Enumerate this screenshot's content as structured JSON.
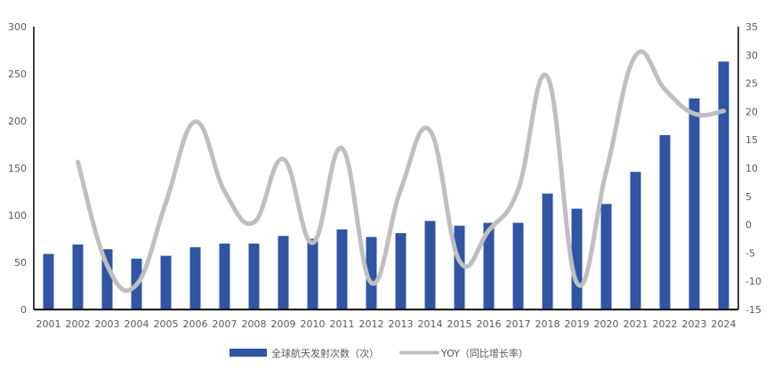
{
  "chart_data": {
    "type": "bar+line",
    "title": "",
    "categories": [
      "2001",
      "2002",
      "2003",
      "2004",
      "2005",
      "2006",
      "2007",
      "2008",
      "2009",
      "2010",
      "2011",
      "2012",
      "2013",
      "2014",
      "2015",
      "2016",
      "2017",
      "2018",
      "2019",
      "2020",
      "2021",
      "2022",
      "2023",
      "2024"
    ],
    "series": [
      {
        "name": "全球航天发射次数（次）",
        "type": "bar",
        "axis": "left",
        "color": "#2F55A4",
        "values": [
          59,
          69,
          64,
          54,
          57,
          66,
          70,
          70,
          78,
          75,
          85,
          77,
          81,
          94,
          89,
          92,
          92,
          123,
          107,
          112,
          146,
          185,
          224,
          263
        ]
      },
      {
        "name": "YOY（同比增长率）",
        "type": "line",
        "axis": "right",
        "color": "#BFBFBF",
        "values": [
          null,
          11.1,
          -7.2,
          -10.6,
          3.9,
          18.2,
          5.9,
          0.4,
          11.6,
          -3.2,
          13.5,
          -10.3,
          6.2,
          16.6,
          -6.4,
          -1.0,
          6.2,
          26.1,
          -10.3,
          9.4,
          29.9,
          23.9,
          19.6,
          20.1
        ]
      }
    ],
    "left_axis": {
      "min": 0,
      "max": 300,
      "step": 50,
      "ticks": [
        "0",
        "50",
        "100",
        "150",
        "200",
        "250",
        "300"
      ]
    },
    "right_axis": {
      "min": -15,
      "max": 35,
      "step": 5,
      "ticks": [
        "-15",
        "-10",
        "-5",
        "0",
        "5",
        "10",
        "15",
        "20",
        "25",
        "30",
        "35"
      ]
    },
    "xlabel": "",
    "ylabel": "",
    "grid": false,
    "legend_position": "bottom"
  },
  "legend": {
    "bar_label": "全球航天发射次数（次）",
    "line_label": "YOY（同比增长率）"
  }
}
